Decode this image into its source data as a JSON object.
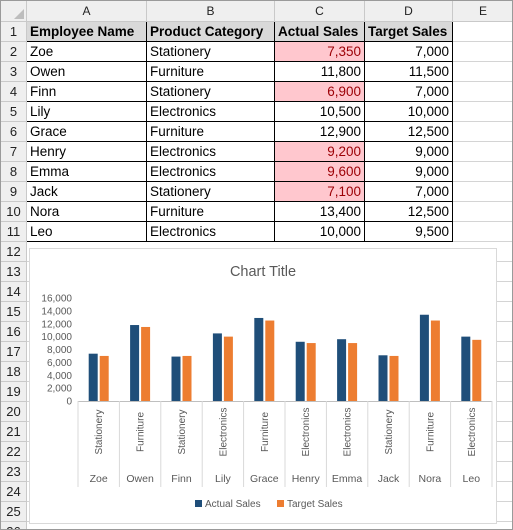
{
  "columns": [
    "A",
    "B",
    "C",
    "D",
    "E"
  ],
  "rows": [
    "1",
    "2",
    "3",
    "4",
    "5",
    "6",
    "7",
    "8",
    "9",
    "10",
    "11",
    "12",
    "13",
    "14",
    "15",
    "16",
    "17",
    "18",
    "19",
    "20",
    "21",
    "22",
    "23",
    "24",
    "25",
    "26"
  ],
  "table": {
    "headers": [
      "Employee Name",
      "Product Category",
      "Actual Sales",
      "Target Sales"
    ],
    "rows": [
      {
        "name": "Zoe",
        "category": "Stationery",
        "actual": "7,350",
        "target": "7,000",
        "highlight": true
      },
      {
        "name": "Owen",
        "category": "Furniture",
        "actual": "11,800",
        "target": "11,500",
        "highlight": false
      },
      {
        "name": "Finn",
        "category": "Stationery",
        "actual": "6,900",
        "target": "7,000",
        "highlight": true
      },
      {
        "name": "Lily",
        "category": "Electronics",
        "actual": "10,500",
        "target": "10,000",
        "highlight": false
      },
      {
        "name": "Grace",
        "category": "Furniture",
        "actual": "12,900",
        "target": "12,500",
        "highlight": false
      },
      {
        "name": "Henry",
        "category": "Electronics",
        "actual": "9,200",
        "target": "9,000",
        "highlight": true
      },
      {
        "name": "Emma",
        "category": "Electronics",
        "actual": "9,600",
        "target": "9,000",
        "highlight": true
      },
      {
        "name": "Jack",
        "category": "Stationery",
        "actual": "7,100",
        "target": "7,000",
        "highlight": true
      },
      {
        "name": "Nora",
        "category": "Furniture",
        "actual": "13,400",
        "target": "12,500",
        "highlight": false
      },
      {
        "name": "Leo",
        "category": "Electronics",
        "actual": "10,000",
        "target": "9,500",
        "highlight": false
      }
    ]
  },
  "colors": {
    "highlight_fill": "#ffc7ce",
    "highlight_text": "#9c0006",
    "series1": "#1f4e79",
    "series2": "#ed7d31"
  },
  "chart_data": {
    "type": "bar",
    "title": "Chart Title",
    "categories": [
      {
        "name": "Zoe",
        "category": "Stationery"
      },
      {
        "name": "Owen",
        "category": "Furniture"
      },
      {
        "name": "Finn",
        "category": "Stationery"
      },
      {
        "name": "Lily",
        "category": "Electronics"
      },
      {
        "name": "Grace",
        "category": "Furniture"
      },
      {
        "name": "Henry",
        "category": "Electronics"
      },
      {
        "name": "Emma",
        "category": "Electronics"
      },
      {
        "name": "Jack",
        "category": "Stationery"
      },
      {
        "name": "Nora",
        "category": "Furniture"
      },
      {
        "name": "Leo",
        "category": "Electronics"
      }
    ],
    "series": [
      {
        "name": "Actual Sales",
        "color": "#1f4e79",
        "values": [
          7350,
          11800,
          6900,
          10500,
          12900,
          9200,
          9600,
          7100,
          13400,
          10000
        ]
      },
      {
        "name": "Target Sales",
        "color": "#ed7d31",
        "values": [
          7000,
          11500,
          7000,
          10000,
          12500,
          9000,
          9000,
          7000,
          12500,
          9500
        ]
      }
    ],
    "ylim": [
      0,
      16000
    ],
    "yticks": [
      "0",
      "2,000",
      "4,000",
      "6,000",
      "8,000",
      "10,000",
      "12,000",
      "14,000",
      "16,000"
    ],
    "grid": false,
    "legend": "bottom"
  }
}
